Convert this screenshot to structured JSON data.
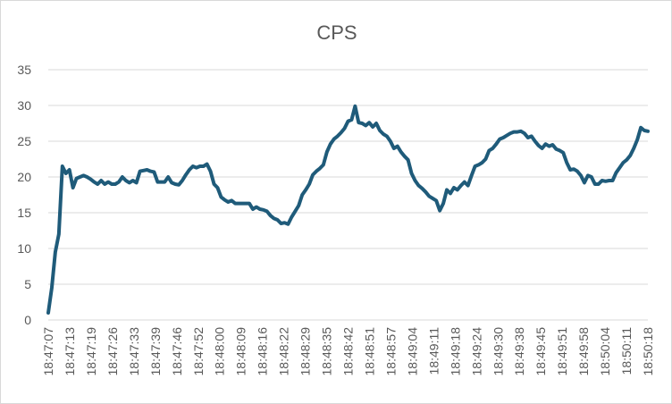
{
  "chart_data": {
    "type": "line",
    "title": "CPS",
    "xlabel": "",
    "ylabel": "",
    "ylim": [
      0,
      35
    ],
    "y_ticks": [
      0,
      5,
      10,
      15,
      20,
      25,
      30,
      35
    ],
    "x_tick_labels": [
      "18:47:07",
      "18:47:13",
      "18:47:19",
      "18:47:26",
      "18:47:33",
      "18:47:39",
      "18:47:46",
      "18:47:52",
      "18:48:00",
      "18:48:09",
      "18:48:16",
      "18:48:22",
      "18:48:29",
      "18:48:35",
      "18:48:42",
      "18:48:51",
      "18:48:57",
      "18:49:04",
      "18:49:11",
      "18:49:18",
      "18:49:24",
      "18:49:30",
      "18:49:38",
      "18:49:45",
      "18:49:51",
      "18:49:58",
      "18:50:04",
      "18:50:11",
      "18:50:18"
    ],
    "grid": "horizontal",
    "legend": "none",
    "series_color": "#1f5b7a",
    "series": [
      {
        "values": [
          1,
          4.5,
          9.5,
          12,
          21.5,
          20.5,
          21,
          18.5,
          19.8,
          20,
          20.2,
          20,
          19.7,
          19.3,
          19,
          19.5,
          19,
          19.3,
          19,
          19,
          19.3,
          20,
          19.5,
          19.2,
          19.5,
          19.2,
          20.8,
          20.9,
          21,
          20.8,
          20.7,
          19.3,
          19.3,
          19.3,
          20,
          19.2,
          19,
          18.9,
          19.5,
          20.3,
          21,
          21.5,
          21.3,
          21.5,
          21.5,
          21.8,
          20.8,
          19,
          18.5,
          17.2,
          16.8,
          16.5,
          16.7,
          16.3,
          16.3,
          16.3,
          16.3,
          16.3,
          15.5,
          15.8,
          15.5,
          15.4,
          15.2,
          14.6,
          14.2,
          14,
          13.5,
          13.6,
          13.4,
          14.4,
          15.2,
          16,
          17.5,
          18.2,
          19,
          20.3,
          20.8,
          21.2,
          21.7,
          23.5,
          24.6,
          25.3,
          25.7,
          26.2,
          26.8,
          27.8,
          28,
          29.9,
          27.6,
          27.5,
          27.2,
          27.6,
          27,
          27.5,
          26.5,
          26,
          25.7,
          25,
          24,
          24.3,
          23.5,
          22.9,
          22.4,
          20.5,
          19.5,
          18.8,
          18.4,
          17.9,
          17.3,
          17,
          16.7,
          15.3,
          16.3,
          18.2,
          17.7,
          18.5,
          18.2,
          18.8,
          19.3,
          18.8,
          20.2,
          21.5,
          21.7,
          22,
          22.5,
          23.7,
          24,
          24.6,
          25.3,
          25.5,
          25.8,
          26.1,
          26.3,
          26.3,
          26.4,
          26.1,
          25.5,
          25.7,
          25,
          24.4,
          24,
          24.6,
          24.3,
          24.5,
          23.9,
          23.7,
          23.4,
          22,
          21,
          21.1,
          20.8,
          20.2,
          19.2,
          20.2,
          20,
          19,
          19,
          19.5,
          19.4,
          19.5,
          19.5,
          20.6,
          21.3,
          22,
          22.4,
          23,
          24,
          25.2,
          26.9,
          26.5,
          26.4
        ]
      }
    ]
  }
}
